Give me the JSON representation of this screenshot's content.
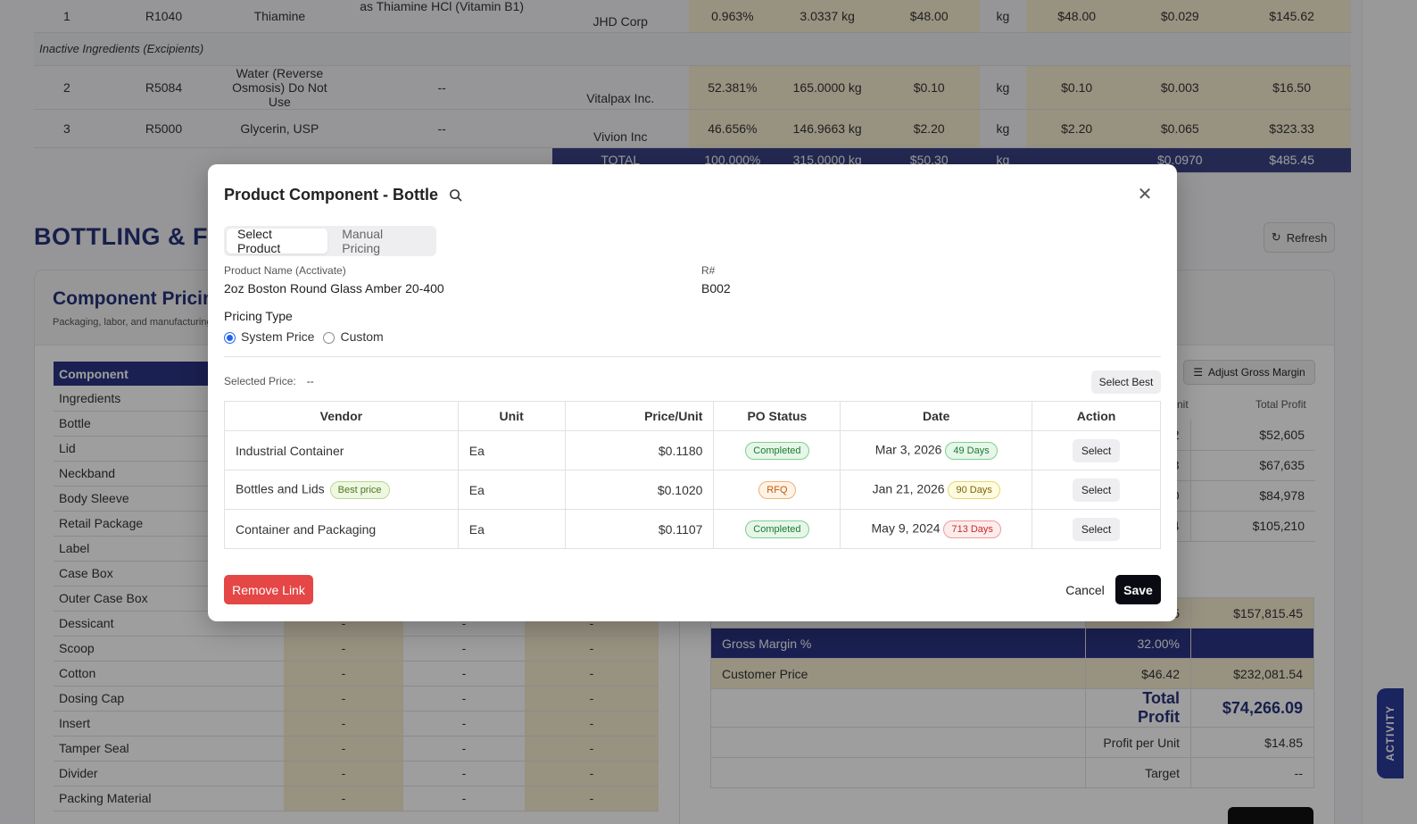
{
  "formula": {
    "rows": [
      {
        "num": "1",
        "code": "R1040",
        "name": "Thiamine",
        "desc": "as Thiamine HCl (Vitamin B1)",
        "vendor": "JHD Corp",
        "pct": "0.963%",
        "qty": "3.0337 kg",
        "price": "$48.00",
        "unit": "kg",
        "unit_price": "$48.00",
        "per": "$0.029",
        "total": "$145.62"
      },
      {
        "num": "2",
        "code": "R5084",
        "name": "Water (Reverse Osmosis) Do Not Use",
        "desc": "--",
        "vendor": "Vitalpax Inc.",
        "pct": "52.381%",
        "qty": "165.0000 kg",
        "price": "$0.10",
        "unit": "kg",
        "unit_price": "$0.10",
        "per": "$0.003",
        "total": "$16.50"
      },
      {
        "num": "3",
        "code": "R5000",
        "name": "Glycerin, USP",
        "desc": "--",
        "vendor": "Vivion Inc",
        "pct": "46.656%",
        "qty": "146.9663 kg",
        "price": "$2.20",
        "unit": "kg",
        "unit_price": "$2.20",
        "per": "$0.065",
        "total": "$323.33"
      }
    ],
    "section_inactive": "Inactive Ingredients (Excipients)",
    "total": {
      "label": "TOTAL",
      "pct": "100.000%",
      "qty": "315.0000 kg",
      "price": "$50.30",
      "unit": "kg",
      "per": "$0.0970",
      "total": "$485.45"
    }
  },
  "bottling": {
    "title": "BOTTLING & FI",
    "refresh_label": "Refresh"
  },
  "component_pricing": {
    "title": "Component Pricing",
    "subtitle": "Packaging, labor, and manufacturing",
    "header": "Component",
    "items": [
      "Ingredients",
      "Bottle",
      "Lid",
      "Neckband",
      "Body Sleeve",
      "Retail Package",
      "Label",
      "Case Box",
      "Outer Case Box",
      "Dessicant",
      "Scoop",
      "Cotton",
      "Dosing Cap",
      "Insert",
      "Tamper Seal",
      "Divider",
      "Packing Material"
    ],
    "dash": "-"
  },
  "right_panel": {
    "adjust_label": "Adjust Gross Margin",
    "col_unit_partial": "nit",
    "col_total_profit": "Total Profit",
    "profit_rows": [
      {
        "frag": "2",
        "value": "$52,605"
      },
      {
        "frag": "3",
        "value": "$67,635"
      },
      {
        "frag": "0",
        "value": "$84,978"
      },
      {
        "frag": "4",
        "value": "$105,210"
      }
    ]
  },
  "summary": {
    "first_row_frag": "5",
    "first_row_value": "$157,815.45",
    "gross_margin_label": "Gross Margin %",
    "gross_margin_value": "32.00%",
    "customer_price_label": "Customer Price",
    "customer_price_unit": "$46.42",
    "customer_price_total": "$232,081.54",
    "total_profit_label": "Total Profit",
    "total_profit_value": "$74,266.09",
    "profit_per_unit_label": "Profit per Unit",
    "profit_per_unit_value": "$14.85",
    "target_label": "Target",
    "target_value": "--"
  },
  "activity_label": "ACTIVITY",
  "modal": {
    "title": "Product Component - Bottle",
    "tabs": [
      "Select Product",
      "Manual Pricing"
    ],
    "product_name_label": "Product Name (Acctivate)",
    "product_name": "2oz Boston Round Glass Amber 20-400",
    "r_label": "R#",
    "r_value": "B002",
    "pricing_type_label": "Pricing Type",
    "radio_system": "System Price",
    "radio_custom": "Custom",
    "selected_price_label": "Selected Price:",
    "selected_price_value": "--",
    "select_best_label": "Select Best",
    "columns": [
      "Vendor",
      "Unit",
      "Price/Unit",
      "PO Status",
      "Date",
      "Action"
    ],
    "vendors": [
      {
        "vendor": "Industrial Container",
        "badge": "",
        "unit": "Ea",
        "price": "$0.1180",
        "status": "Completed",
        "date": "Mar 3, 2026",
        "age": "49 Days",
        "action": "Select"
      },
      {
        "vendor": "Bottles and Lids",
        "badge": "Best price",
        "unit": "Ea",
        "price": "$0.1020",
        "status": "RFQ",
        "date": "Jan 21, 2026",
        "age": "90 Days",
        "action": "Select"
      },
      {
        "vendor": "Container and Packaging",
        "badge": "",
        "unit": "Ea",
        "price": "$0.1107",
        "status": "Completed",
        "date": "May 9, 2024",
        "age": "713 Days",
        "action": "Select"
      }
    ],
    "remove_label": "Remove Link",
    "cancel_label": "Cancel",
    "save_label": "Save"
  }
}
